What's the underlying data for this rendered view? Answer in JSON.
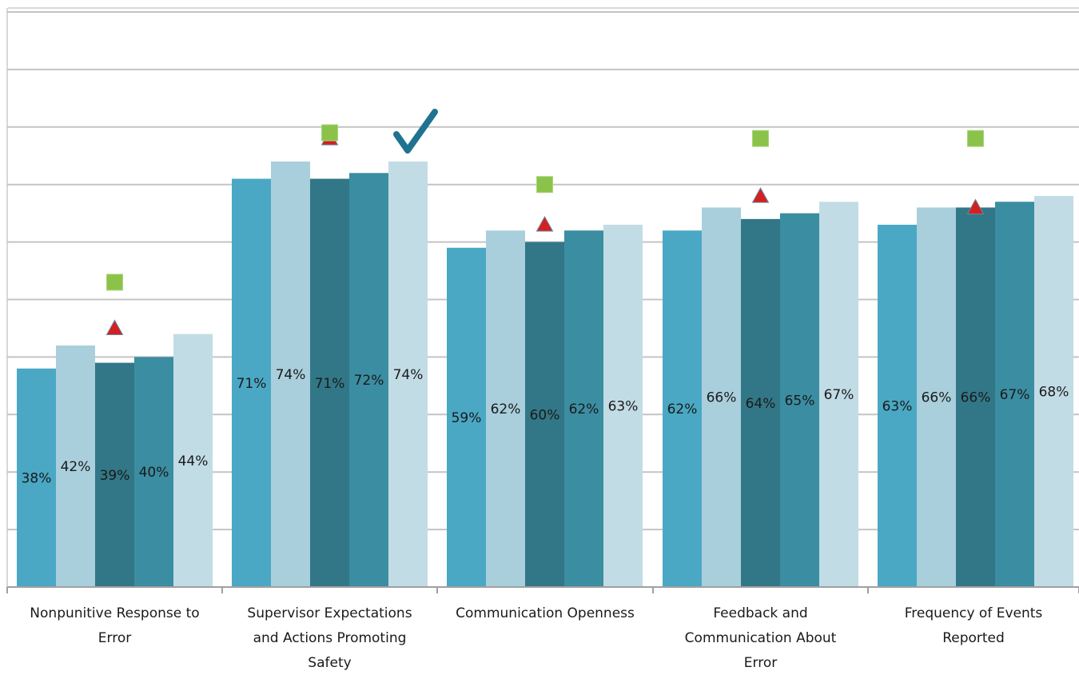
{
  "colors": {
    "series": [
      "#4aa8c4",
      "#a9cfdc",
      "#327787",
      "#3b8da2",
      "#c2dce5"
    ],
    "marker_square": "#8bc34a",
    "marker_triangle": "#d32020",
    "checkmark": "#1f7390",
    "grid": "#c4c4c4",
    "axis": "#a0a0a0"
  },
  "icons": {
    "checkmark": "check-icon",
    "square": "square-marker",
    "triangle": "triangle-marker"
  },
  "chart_data": {
    "type": "bar",
    "ylim": [
      0,
      100
    ],
    "grid": true,
    "ytick_step": 10,
    "categories": [
      [
        "Nonpunitive Response to",
        "Error"
      ],
      [
        "Supervisor Expectations",
        "and Actions Promoting",
        "Safety"
      ],
      [
        "Communication Openness"
      ],
      [
        "Feedback and",
        "Communication About",
        "Error"
      ],
      [
        "Frequency of Events",
        "Reported"
      ]
    ],
    "series": [
      {
        "values": [
          38,
          71,
          59,
          62,
          63
        ],
        "labels": [
          "38%",
          "71%",
          "59%",
          "62%",
          "63%"
        ]
      },
      {
        "values": [
          42,
          74,
          62,
          66,
          66
        ],
        "labels": [
          "42%",
          "74%",
          "62%",
          "66%",
          "66%"
        ]
      },
      {
        "values": [
          39,
          71,
          60,
          64,
          66
        ],
        "labels": [
          "39%",
          "71%",
          "60%",
          "64%",
          "66%"
        ]
      },
      {
        "values": [
          40,
          72,
          62,
          65,
          67
        ],
        "labels": [
          "40%",
          "72%",
          "62%",
          "65%",
          "67%"
        ]
      },
      {
        "values": [
          44,
          74,
          63,
          67,
          68
        ],
        "labels": [
          "44%",
          "74%",
          "63%",
          "67%",
          "68%"
        ]
      }
    ],
    "markers": {
      "square": [
        53,
        79,
        70,
        78,
        78
      ],
      "triangle": [
        45,
        78,
        63,
        68,
        66
      ]
    },
    "checkmark_category": 1
  }
}
